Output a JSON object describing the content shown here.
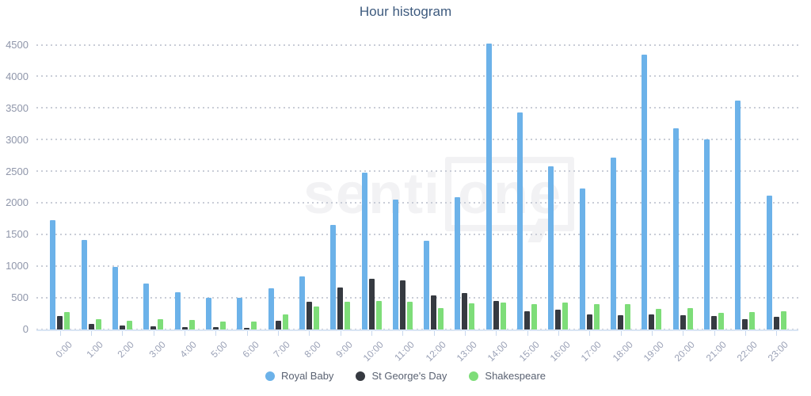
{
  "title": "Hour histogram",
  "watermark": {
    "prefix": "senti",
    "suffix": "one"
  },
  "chart_data": {
    "type": "bar",
    "title": "Hour histogram",
    "xlabel": "",
    "ylabel": "",
    "ylim": [
      0,
      4500
    ],
    "yticks": [
      0,
      500,
      1000,
      1500,
      2000,
      2500,
      3000,
      3500,
      4000,
      4500
    ],
    "grid": true,
    "legend_position": "bottom",
    "categories": [
      "0:00",
      "1:00",
      "2:00",
      "3:00",
      "4:00",
      "5:00",
      "6:00",
      "7:00",
      "8:00",
      "9:00",
      "10:00",
      "11:00",
      "12:00",
      "13:00",
      "14:00",
      "15:00",
      "16:00",
      "17:00",
      "18:00",
      "19:00",
      "20:00",
      "21:00",
      "22:00",
      "23:00"
    ],
    "series": [
      {
        "name": "Royal Baby",
        "color": "#6cb2e9",
        "values": [
          1730,
          1420,
          990,
          730,
          590,
          500,
          505,
          650,
          840,
          1660,
          2480,
          2050,
          1410,
          2090,
          4530,
          3430,
          2580,
          2230,
          2720,
          4350,
          3190,
          3010,
          3620,
          2120
        ]
      },
      {
        "name": "St George's Day",
        "color": "#363a41",
        "values": [
          210,
          85,
          60,
          45,
          35,
          40,
          30,
          135,
          440,
          665,
          805,
          775,
          545,
          580,
          450,
          290,
          310,
          240,
          230,
          240,
          220,
          215,
          160,
          200
        ]
      },
      {
        "name": "Shakespeare",
        "color": "#7edd79",
        "values": [
          280,
          165,
          140,
          160,
          150,
          125,
          125,
          235,
          360,
          435,
          450,
          440,
          335,
          410,
          430,
          395,
          425,
          395,
          400,
          325,
          340,
          260,
          270,
          285
        ]
      }
    ]
  }
}
